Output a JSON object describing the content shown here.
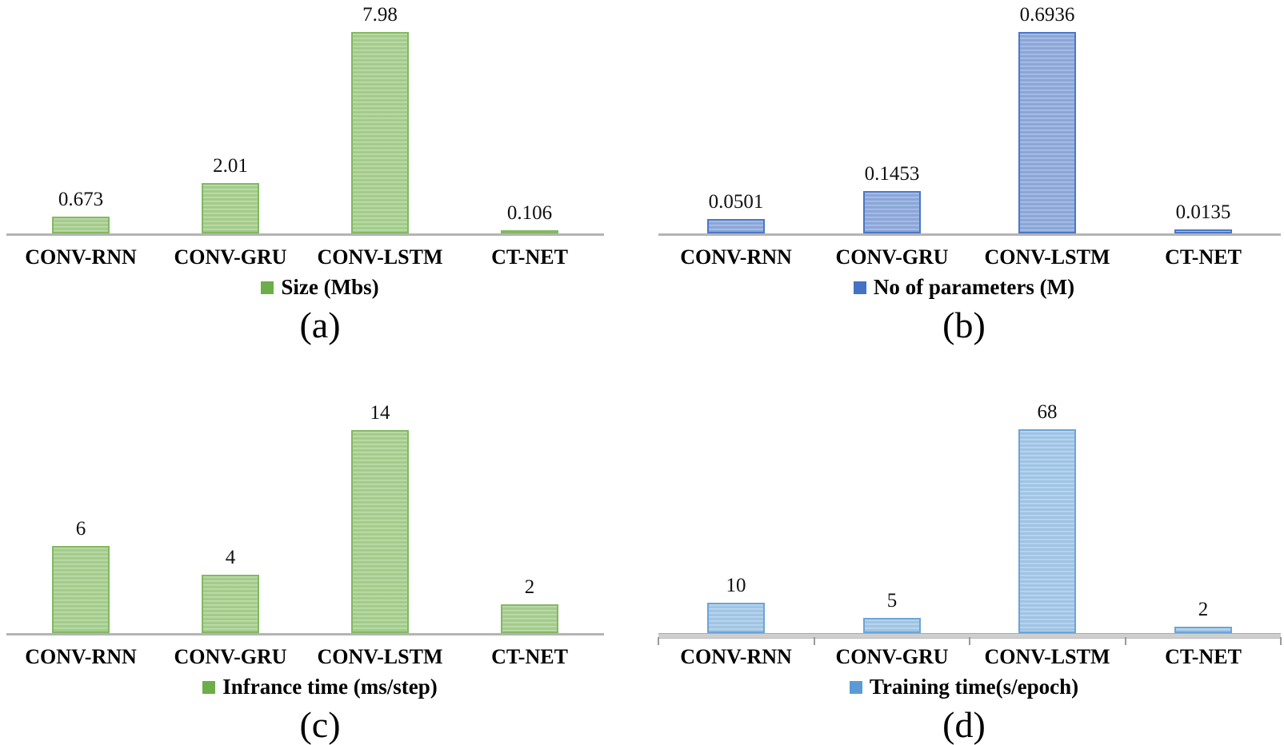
{
  "figure": {
    "description": "Model comparison bar charts",
    "models": [
      "CONV-RNN",
      "CONV-GRU",
      "CONV-LSTM",
      "CT-NET"
    ]
  },
  "chart_data": [
    {
      "id": "a",
      "type": "bar",
      "categories": [
        "CONV-RNN",
        "CONV-GRU",
        "CONV-LSTM",
        "CT-NET"
      ],
      "values": [
        0.673,
        2.01,
        7.98,
        0.106
      ],
      "value_labels": [
        "0.673",
        "2.01",
        "7.98",
        "0.106"
      ],
      "legend_label": "Size (Mbs)",
      "caption": "(a)",
      "legend_position": "bottom",
      "grid": false,
      "ylim": [
        0,
        8.5
      ],
      "colors": {
        "fill": "#a6cf8d",
        "border": "#82b961",
        "legend": "#6cae49"
      }
    },
    {
      "id": "b",
      "type": "bar",
      "categories": [
        "CONV-RNN",
        "CONV-GRU",
        "CONV-LSTM",
        "CT-NET"
      ],
      "values": [
        0.0501,
        0.1453,
        0.6936,
        0.0135
      ],
      "value_labels": [
        "0.0501",
        "0.1453",
        "0.6936",
        "0.0135"
      ],
      "legend_label": "No of parameters (M)",
      "caption": "(b)",
      "legend_position": "bottom",
      "grid": false,
      "ylim": [
        0,
        0.75
      ],
      "colors": {
        "fill": "#8da9dc",
        "border": "#4a77c9",
        "legend": "#4472c4"
      }
    },
    {
      "id": "c",
      "type": "bar",
      "categories": [
        "CONV-RNN",
        "CONV-GRU",
        "CONV-LSTM",
        "CT-NET"
      ],
      "values": [
        6,
        4,
        14,
        2
      ],
      "value_labels": [
        "6",
        "4",
        "14",
        "2"
      ],
      "legend_label": "Infrance time (ms/step)",
      "caption": "(c)",
      "legend_position": "bottom",
      "grid": false,
      "ylim": [
        0,
        15
      ],
      "colors": {
        "fill": "#a6cf8d",
        "border": "#82b961",
        "legend": "#6cae49"
      }
    },
    {
      "id": "d",
      "type": "bar",
      "categories": [
        "CONV-RNN",
        "CONV-GRU",
        "CONV-LSTM",
        "CT-NET"
      ],
      "values": [
        10,
        5,
        68,
        2
      ],
      "value_labels": [
        "10",
        "5",
        "68",
        "2"
      ],
      "legend_label": "Training time(s/epoch)",
      "caption": "(d)",
      "legend_position": "bottom",
      "grid": false,
      "ylim": [
        0,
        72
      ],
      "colors": {
        "fill": "#a3c8e8",
        "border": "#6ba4d9",
        "legend": "#5b9bd5"
      }
    }
  ]
}
